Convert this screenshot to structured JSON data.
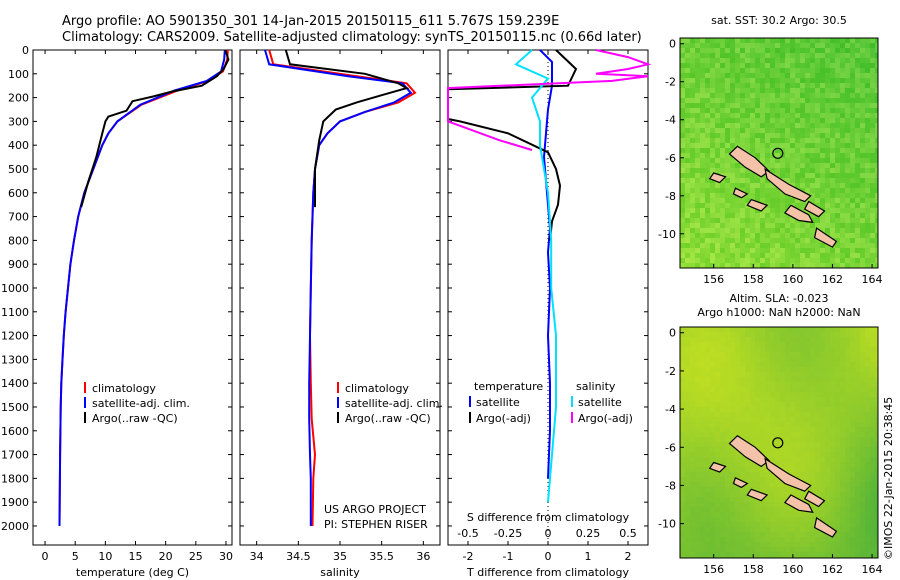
{
  "header": {
    "line1": "Argo profile: AO 5901350_301 14-Jan-2015 20150115_611 5.767S 159.239E",
    "line2": "Climatology: CARS2009. Satellite-adjusted climatology: synTS_20150115.nc (0.66d later)"
  },
  "stamp": "©IMOS 22-Jan-2015 20:38:45",
  "colors": {
    "climatology": "#ff0000",
    "satellite": "#0000ff",
    "argo": "#000000",
    "sal_satellite": "#00e0ff",
    "sal_argo": "#ff00ff",
    "land": "#f4c2a8"
  },
  "chart_data": [
    {
      "type": "line",
      "id": "temperature",
      "xlabel": "temperature (deg C)",
      "ylabel": "",
      "xlim": [
        -2,
        31
      ],
      "ylim": [
        2080,
        0
      ],
      "xticks": [
        0,
        5,
        10,
        15,
        20,
        25,
        30
      ],
      "yticks": [
        0,
        100,
        200,
        300,
        400,
        500,
        600,
        700,
        800,
        900,
        1000,
        1100,
        1200,
        1300,
        1400,
        1500,
        1600,
        1700,
        1800,
        1900,
        2000
      ],
      "legend": [
        "climatology",
        "satellite-adj. clim.",
        "Argo(..raw -QC)"
      ],
      "legend_position": "bottom-center",
      "series": [
        {
          "name": "climatology",
          "color": "#ff0000",
          "x": [
            30.3,
            30.2,
            29.5,
            27,
            22,
            16,
            12,
            10.5,
            9.5,
            8,
            6.5,
            5.5,
            4.8,
            4.2,
            3.8,
            3.4,
            3.1,
            2.9,
            2.7,
            2.6,
            2.5,
            2.4
          ],
          "y": [
            0,
            40,
            90,
            130,
            170,
            230,
            300,
            350,
            400,
            500,
            600,
            700,
            800,
            900,
            1000,
            1100,
            1200,
            1300,
            1400,
            1500,
            1700,
            2000
          ]
        },
        {
          "name": "satellite-adj. clim.",
          "color": "#0000ff",
          "x": [
            29.8,
            29.7,
            29.2,
            26.8,
            21.5,
            15.8,
            12,
            10.5,
            9.5,
            8,
            6.5,
            5.5,
            4.8,
            4.2,
            3.8,
            3.4,
            3.1,
            2.9,
            2.7,
            2.6,
            2.5,
            2.4
          ],
          "y": [
            0,
            40,
            90,
            130,
            170,
            230,
            300,
            350,
            400,
            500,
            600,
            700,
            800,
            900,
            1000,
            1100,
            1200,
            1300,
            1400,
            1500,
            1700,
            2000
          ]
        },
        {
          "name": "Argo(..raw -QC)",
          "color": "#000000",
          "x": [
            29.9,
            30.4,
            29.6,
            28.5,
            26,
            21,
            18,
            14.5,
            13.5,
            10.5,
            10,
            9.5,
            8.5,
            7.2,
            6
          ],
          "y": [
            0,
            40,
            80,
            110,
            150,
            175,
            195,
            215,
            255,
            280,
            300,
            350,
            450,
            550,
            660
          ]
        }
      ]
    },
    {
      "type": "line",
      "id": "salinity",
      "xlabel": "salinity",
      "ylabel": "",
      "xlim": [
        33.8,
        36.2
      ],
      "ylim": [
        2080,
        0
      ],
      "xticks": [
        34,
        34.5,
        35,
        35.5,
        36
      ],
      "legend": [
        "climatology",
        "satellite-adj. clim.",
        "Argo(..raw -QC)"
      ],
      "legend_position": "bottom-right",
      "annotation": [
        "US ARGO PROJECT",
        "PI: STEPHEN RISER"
      ],
      "series": [
        {
          "name": "climatology",
          "color": "#ff0000",
          "x": [
            34.15,
            34.2,
            35.2,
            35.8,
            35.9,
            35.7,
            35.3,
            35.0,
            34.85,
            34.75,
            34.7,
            34.68,
            34.66,
            34.65,
            34.64,
            34.65,
            34.66,
            34.7,
            34.68,
            34.67
          ],
          "y": [
            0,
            60,
            110,
            140,
            180,
            220,
            260,
            300,
            350,
            400,
            500,
            600,
            800,
            1000,
            1200,
            1400,
            1550,
            1700,
            1800,
            2000
          ]
        },
        {
          "name": "satellite-adj. clim.",
          "color": "#0000ff",
          "x": [
            34.1,
            34.15,
            35.1,
            35.75,
            35.85,
            35.65,
            35.3,
            35.0,
            34.85,
            34.75,
            34.7,
            34.68,
            34.66,
            34.65,
            34.64,
            34.63,
            34.63,
            34.64,
            34.65,
            34.65
          ],
          "y": [
            0,
            60,
            110,
            140,
            180,
            220,
            260,
            300,
            350,
            400,
            500,
            600,
            800,
            1000,
            1200,
            1400,
            1550,
            1700,
            1800,
            2000
          ]
        },
        {
          "name": "Argo(..raw -QC)",
          "color": "#000000",
          "x": [
            34.35,
            34.4,
            35.3,
            35.7,
            35.8,
            35.5,
            35.2,
            34.95,
            34.8,
            34.75,
            34.7,
            34.7
          ],
          "y": [
            0,
            60,
            100,
            140,
            160,
            190,
            220,
            250,
            300,
            380,
            500,
            660
          ]
        }
      ]
    },
    {
      "type": "line",
      "id": "difference",
      "xlabel": "T difference from climatology",
      "top_xlabel": "S difference from climatology",
      "xlim": [
        -2.5,
        2.5
      ],
      "ylim": [
        2080,
        0
      ],
      "xticks": [
        -2,
        -1,
        0,
        1,
        2
      ],
      "top_xticks": [
        -0.5,
        -0.25,
        0,
        0.25,
        0.5
      ],
      "legend_temperature_header": "temperature",
      "legend_salinity_header": "salinity",
      "legend": [
        "satellite",
        "Argo(-adj)",
        "satellite",
        "Argo(-adj)"
      ],
      "legend_position": "bottom-center",
      "series": [
        {
          "name": "satellite",
          "group": "temperature",
          "color": "#0000ff",
          "x": [
            -0.2,
            0.1,
            0.1,
            0,
            -0.05,
            -0.1,
            -0.05,
            0,
            0.05,
            0,
            0.05,
            0,
            0.05,
            0.05,
            0
          ],
          "y": [
            0,
            50,
            150,
            250,
            350,
            450,
            550,
            650,
            750,
            850,
            1000,
            1200,
            1400,
            1600,
            1800
          ]
        },
        {
          "name": "Argo(-adj)",
          "group": "temperature",
          "color": "#000000",
          "x": [
            0.2,
            0.7,
            0.5,
            -2.5,
            -2.5,
            -2.2,
            -1.0,
            0,
            0.2,
            0.3,
            0.25,
            0.1,
            0.05
          ],
          "y": [
            0,
            80,
            150,
            165,
            290,
            300,
            350,
            430,
            500,
            570,
            650,
            720,
            800
          ]
        },
        {
          "name": "satellite",
          "group": "salinity",
          "color": "#00e0ff",
          "x": [
            -0.1,
            -0.2,
            0.0,
            -0.1,
            -0.05,
            -0.05,
            0,
            0.02,
            0.02,
            0.05,
            0.05,
            0
          ],
          "y": [
            0,
            60,
            120,
            200,
            300,
            400,
            600,
            800,
            1000,
            1200,
            1500,
            1900
          ]
        },
        {
          "name": "Argo(-adj)",
          "group": "salinity",
          "color": "#ff00ff",
          "x": [
            0.3,
            0.5,
            0.9,
            0.5,
            0.3,
            0.8,
            0.4,
            -1.2,
            -1.8,
            -1.9,
            -0.9,
            -1.2,
            -0.3,
            -0.1
          ],
          "y": [
            0,
            30,
            60,
            80,
            100,
            110,
            130,
            160,
            180,
            220,
            260,
            300,
            380,
            420
          ]
        }
      ]
    },
    {
      "type": "heatmap",
      "id": "sst_map",
      "title": "sat. SST: 30.2  Argo: 30.5",
      "xlim": [
        154.3,
        164.3
      ],
      "ylim": [
        -11.8,
        0.3
      ],
      "xticks": [
        156,
        158,
        160,
        162,
        164
      ],
      "yticks": [
        0,
        -2,
        -4,
        -6,
        -8,
        -10
      ],
      "marker": {
        "lon": 159.239,
        "lat": -5.767
      }
    },
    {
      "type": "heatmap",
      "id": "sla_map",
      "title": "Altim. SLA: -0.023",
      "subtitle": "Argo h1000: NaN h2000: NaN",
      "xlim": [
        154.3,
        164.3
      ],
      "ylim": [
        -11.8,
        0.3
      ],
      "xticks": [
        156,
        158,
        160,
        162,
        164
      ],
      "yticks": [
        0,
        -2,
        -4,
        -6,
        -8,
        -10
      ],
      "marker": {
        "lon": 159.239,
        "lat": -5.767
      }
    }
  ]
}
